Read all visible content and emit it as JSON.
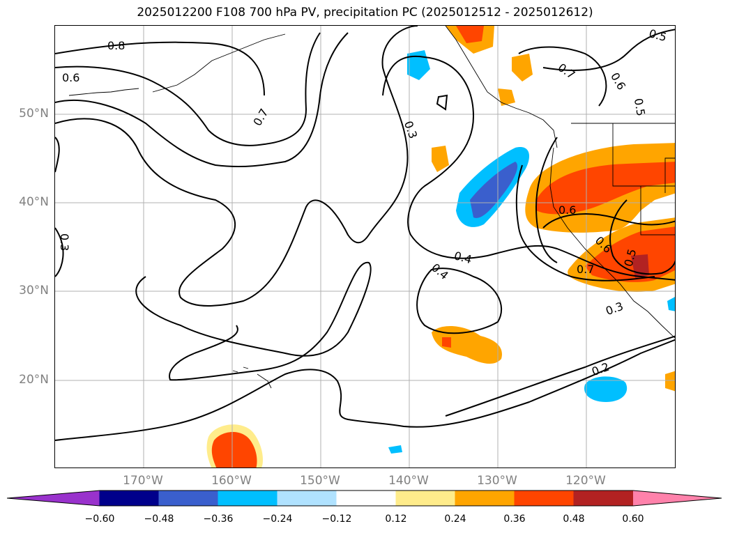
{
  "title": "2025012200 F108 700 hPa PV, precipitation PC (2025012512 - 2025012612)",
  "lat_labels": [
    "50°N",
    "40°N",
    "30°N",
    "20°N"
  ],
  "lon_labels": [
    "170°W",
    "160°W",
    "150°W",
    "140°W",
    "130°W",
    "120°W"
  ],
  "contour_labels": [
    "0.8",
    "0.6",
    "0.7",
    "0.3",
    "0.7",
    "0.6",
    "0.5",
    "0.5",
    "0.6",
    "0.6",
    "0.7",
    "0.5",
    "0.4",
    "0.4",
    "0.3",
    "0.2",
    "0.3"
  ],
  "colorbar": {
    "ticks": [
      "−0.60",
      "−0.48",
      "−0.36",
      "−0.24",
      "−0.12",
      "0.12",
      "0.24",
      "0.36",
      "0.48",
      "0.60"
    ],
    "colors": [
      "#9932cc",
      "#00008b",
      "#3a5fcd",
      "#00bfff",
      "#b0e2ff",
      "#ffffff",
      "#ffec8b",
      "#ffa500",
      "#ff4500",
      "#b22222",
      "#ff82ab"
    ]
  }
}
